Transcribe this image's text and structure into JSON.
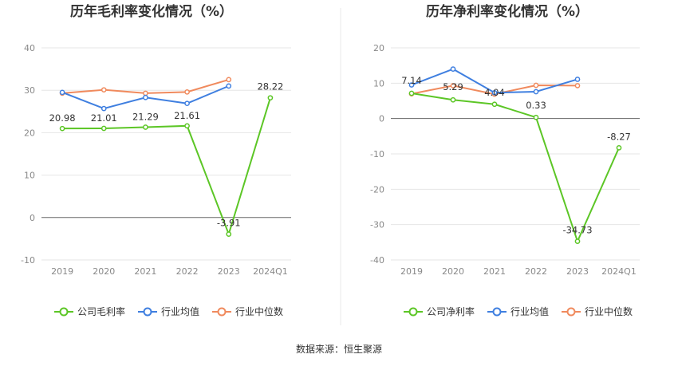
{
  "chart_data": [
    {
      "type": "line",
      "title": "历年毛利率变化情况（%）",
      "categories": [
        "2019",
        "2020",
        "2021",
        "2022",
        "2023",
        "2024Q1"
      ],
      "ylim": [
        -10,
        40
      ],
      "yticks": [
        40,
        30,
        20,
        10,
        0,
        -10
      ],
      "series": [
        {
          "name": "公司毛利率",
          "color": "#5cc626",
          "values": [
            20.98,
            21.01,
            21.29,
            21.61,
            -3.91,
            28.22
          ],
          "labels": [
            "20.98",
            "21.01",
            "21.29",
            "21.61",
            "-3.91",
            "28.22"
          ]
        },
        {
          "name": "行业均值",
          "color": "#3f7fe0",
          "values": [
            29.5,
            25.7,
            28.3,
            26.9,
            31.0,
            null
          ]
        },
        {
          "name": "行业中位数",
          "color": "#f08a5d",
          "values": [
            29.3,
            30.1,
            29.3,
            29.6,
            32.5,
            null
          ]
        }
      ]
    },
    {
      "type": "line",
      "title": "历年净利率变化情况（%）",
      "categories": [
        "2019",
        "2020",
        "2021",
        "2022",
        "2023",
        "2024Q1"
      ],
      "ylim": [
        -40,
        20
      ],
      "yticks": [
        20,
        10,
        0,
        -10,
        -20,
        -30,
        -40
      ],
      "series": [
        {
          "name": "公司净利率",
          "color": "#5cc626",
          "values": [
            7.14,
            5.29,
            4.04,
            0.33,
            -34.73,
            -8.27
          ],
          "labels": [
            "7.14",
            "5.29",
            "4.04",
            "0.33",
            "-34.73",
            "-8.27"
          ]
        },
        {
          "name": "行业均值",
          "color": "#3f7fe0",
          "values": [
            9.5,
            14.0,
            7.3,
            7.6,
            11.1,
            null
          ]
        },
        {
          "name": "行业中位数",
          "color": "#f08a5d",
          "values": [
            7.0,
            9.3,
            6.9,
            9.4,
            9.3,
            null
          ]
        }
      ]
    }
  ],
  "source": "数据来源：恒生聚源"
}
